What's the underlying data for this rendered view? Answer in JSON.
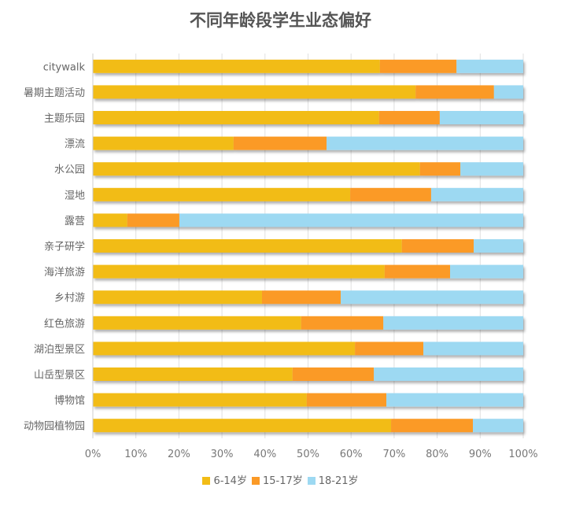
{
  "chart_data": {
    "type": "bar",
    "orientation": "horizontal",
    "stacked": "percent",
    "title": "不同年龄段学生业态偏好",
    "categories": [
      "citywalk",
      "暑期主题活动",
      "主题乐园",
      "漂流",
      "水公园",
      "湿地",
      "露营",
      "亲子研学",
      "海洋旅游",
      "乡村游",
      "红色旅游",
      "湖泊型景区",
      "山岳型景区",
      "博物馆",
      "动物园植物园"
    ],
    "series": [
      {
        "name": "6-14岁",
        "color": "#f2bc16",
        "values": [
          66.7,
          75.0,
          66.5,
          32.7,
          76.0,
          59.8,
          8.0,
          71.8,
          67.8,
          39.3,
          48.4,
          60.9,
          46.4,
          49.7,
          69.3
        ]
      },
      {
        "name": "15-17岁",
        "color": "#fb9a27",
        "values": [
          17.8,
          18.2,
          14.1,
          21.6,
          9.4,
          18.8,
          12.1,
          16.7,
          15.2,
          18.3,
          19.1,
          15.9,
          18.9,
          18.5,
          19.0
        ]
      },
      {
        "name": "18-21岁",
        "color": "#9dd9f2",
        "values": [
          15.5,
          6.8,
          19.4,
          45.7,
          14.6,
          21.4,
          79.9,
          11.5,
          17.0,
          42.4,
          32.5,
          23.2,
          34.7,
          31.8,
          11.7
        ]
      }
    ],
    "xticks": [
      "0%",
      "10%",
      "20%",
      "30%",
      "40%",
      "50%",
      "60%",
      "70%",
      "80%",
      "90%",
      "100%"
    ],
    "xlim": [
      0,
      100
    ],
    "grid": true,
    "legend": "bottom"
  }
}
